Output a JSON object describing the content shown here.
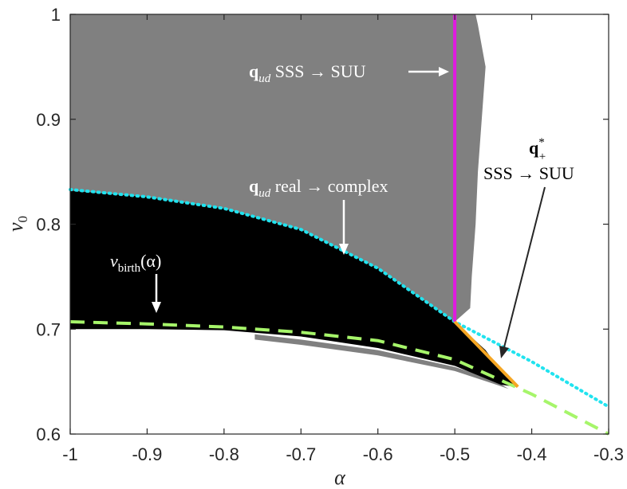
{
  "chart_data": {
    "type": "area",
    "title": "",
    "xlabel": "α",
    "ylabel": "v0",
    "xlim": [
      -1,
      -0.3
    ],
    "ylim": [
      0.6,
      1
    ],
    "xticks": [
      -1,
      -0.9,
      -0.8,
      -0.7,
      -0.6,
      -0.5,
      -0.4,
      -0.3
    ],
    "xtick_labels": [
      "-1",
      "-0.9",
      "-0.8",
      "-0.7",
      "-0.6",
      "-0.5",
      "-0.4",
      "-0.3"
    ],
    "yticks": [
      0.6,
      0.7,
      0.8,
      0.9,
      1
    ],
    "ytick_labels": [
      "0.6",
      "0.7",
      "0.8",
      "0.9",
      "1"
    ],
    "grid": false,
    "colors": {
      "gray_region": "#808080",
      "black_region": "#000000",
      "cyan_dotted": "#21e3ef",
      "magenta_line": "#e01ae0",
      "green_dashed": "#a6f56a",
      "orange_line": "#f5a623"
    },
    "regions": {
      "gray_upper": [
        [
          -1,
          1
        ],
        [
          -0.473,
          1
        ],
        [
          -0.47,
          0.99
        ],
        [
          -0.46,
          0.95
        ],
        [
          -0.465,
          0.9
        ],
        [
          -0.47,
          0.85
        ],
        [
          -0.473,
          0.8
        ],
        [
          -0.478,
          0.75
        ],
        [
          -0.48,
          0.72
        ],
        [
          -0.5,
          0.707
        ],
        [
          -0.6,
          0.758
        ],
        [
          -0.7,
          0.795
        ],
        [
          -0.8,
          0.815
        ],
        [
          -0.9,
          0.826
        ],
        [
          -1,
          0.832
        ]
      ],
      "black_lower": [
        [
          -1,
          0.832
        ],
        [
          -0.9,
          0.826
        ],
        [
          -0.8,
          0.815
        ],
        [
          -0.7,
          0.795
        ],
        [
          -0.6,
          0.758
        ],
        [
          -0.5,
          0.707
        ],
        [
          -0.46,
          0.68
        ],
        [
          -0.44,
          0.66
        ],
        [
          -0.42,
          0.645
        ],
        [
          -0.44,
          0.647
        ],
        [
          -0.5,
          0.665
        ],
        [
          -0.6,
          0.682
        ],
        [
          -0.7,
          0.693
        ],
        [
          -0.8,
          0.699
        ],
        [
          -0.9,
          0.7
        ],
        [
          -1,
          0.7
        ]
      ],
      "gray_lower_strip": [
        [
          -0.76,
          0.69
        ],
        [
          -0.7,
          0.685
        ],
        [
          -0.6,
          0.675
        ],
        [
          -0.5,
          0.66
        ],
        [
          -0.45,
          0.648
        ],
        [
          -0.43,
          0.643
        ],
        [
          -0.45,
          0.652
        ],
        [
          -0.5,
          0.664
        ],
        [
          -0.6,
          0.68
        ],
        [
          -0.7,
          0.69
        ],
        [
          -0.76,
          0.695
        ]
      ]
    },
    "series": [
      {
        "style": "cyan-dotted",
        "x": [
          -1,
          -0.9,
          -0.8,
          -0.7,
          -0.6,
          -0.5,
          -0.4,
          -0.3
        ],
        "y": [
          0.833,
          0.826,
          0.815,
          0.795,
          0.758,
          0.707,
          0.669,
          0.626
        ]
      },
      {
        "style": "green-dashed",
        "x": [
          -1,
          -0.9,
          -0.8,
          -0.7,
          -0.6,
          -0.5,
          -0.4,
          -0.3
        ],
        "y": [
          0.707,
          0.705,
          0.702,
          0.697,
          0.689,
          0.671,
          0.638,
          0.6
        ]
      },
      {
        "style": "magenta-solid",
        "x": [
          -0.5,
          -0.5
        ],
        "y": [
          0.707,
          1
        ]
      },
      {
        "style": "orange-solid",
        "x": [
          -0.5,
          -0.418
        ],
        "y": [
          0.707,
          0.645
        ]
      }
    ],
    "annotations": [
      {
        "bold": "q",
        "sub": "ud",
        "text": " SSS → SUU",
        "arrow_to": [
          -0.5,
          0.945
        ]
      },
      {
        "bold": "q",
        "sub": "ud",
        "text": " real → complex",
        "arrow_to": [
          -0.645,
          0.755
        ]
      },
      {
        "math": "v",
        "sub": "birth",
        "text": "(α)",
        "arrow_to": [
          -0.885,
          0.712
        ]
      },
      {
        "bold": "q",
        "sup": "*",
        "sub": "+",
        "line2": "SSS → SUU",
        "arrow_to": [
          -0.44,
          0.666
        ]
      }
    ]
  }
}
